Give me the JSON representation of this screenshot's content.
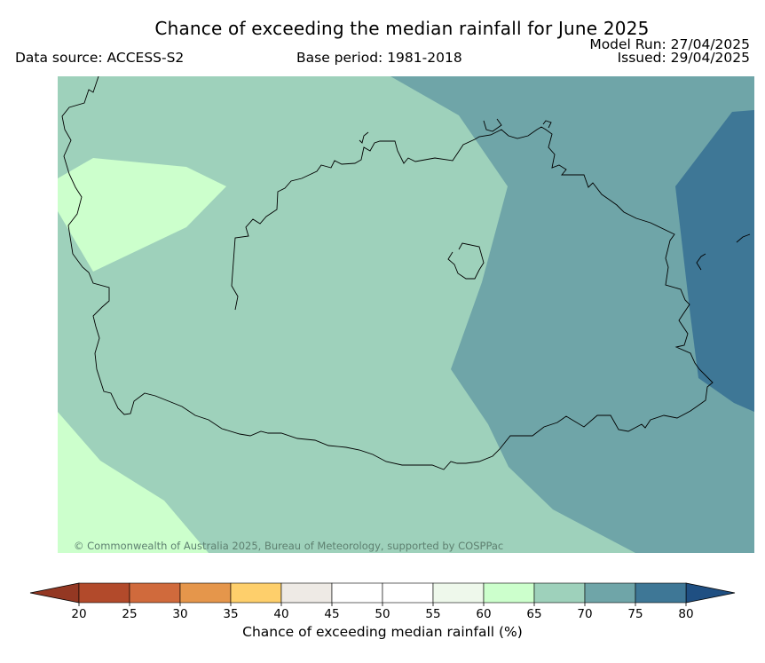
{
  "header": {
    "title": "Chance of exceeding the median rainfall for June 2025",
    "data_source": "Data source: ACCESS-S2",
    "base_period": "Base period: 1981-2018",
    "model_run": "Model Run: 27/04/2025",
    "issued": "Issued: 29/04/2025"
  },
  "map": {
    "copyright": "© Commonwealth of Australia 2025, Bureau of Meteorology, supported by COSPPac",
    "zones": [
      {
        "range": "65-70",
        "color": "#9ed1bb"
      },
      {
        "range": "60-65",
        "color": "#ccffcc"
      },
      {
        "range": "70-75",
        "color": "#6fa5a8"
      },
      {
        "range": "75-80",
        "color": "#3e7796"
      }
    ]
  },
  "colorbar": {
    "label": "Chance of exceeding median rainfall (%)",
    "ticks": [
      "20",
      "25",
      "30",
      "35",
      "40",
      "45",
      "50",
      "55",
      "60",
      "65",
      "70",
      "75",
      "80"
    ],
    "colors": [
      "#b24a2b",
      "#d06a3c",
      "#e5964b",
      "#fecf6b",
      "#eeeae5",
      "#ffffff",
      "#ffffff",
      "#eef8eb",
      "#ccffcc",
      "#9ed1bb",
      "#6fa5a8",
      "#3e7796"
    ],
    "under_color": "#943823",
    "over_color": "#1f4f82"
  }
}
